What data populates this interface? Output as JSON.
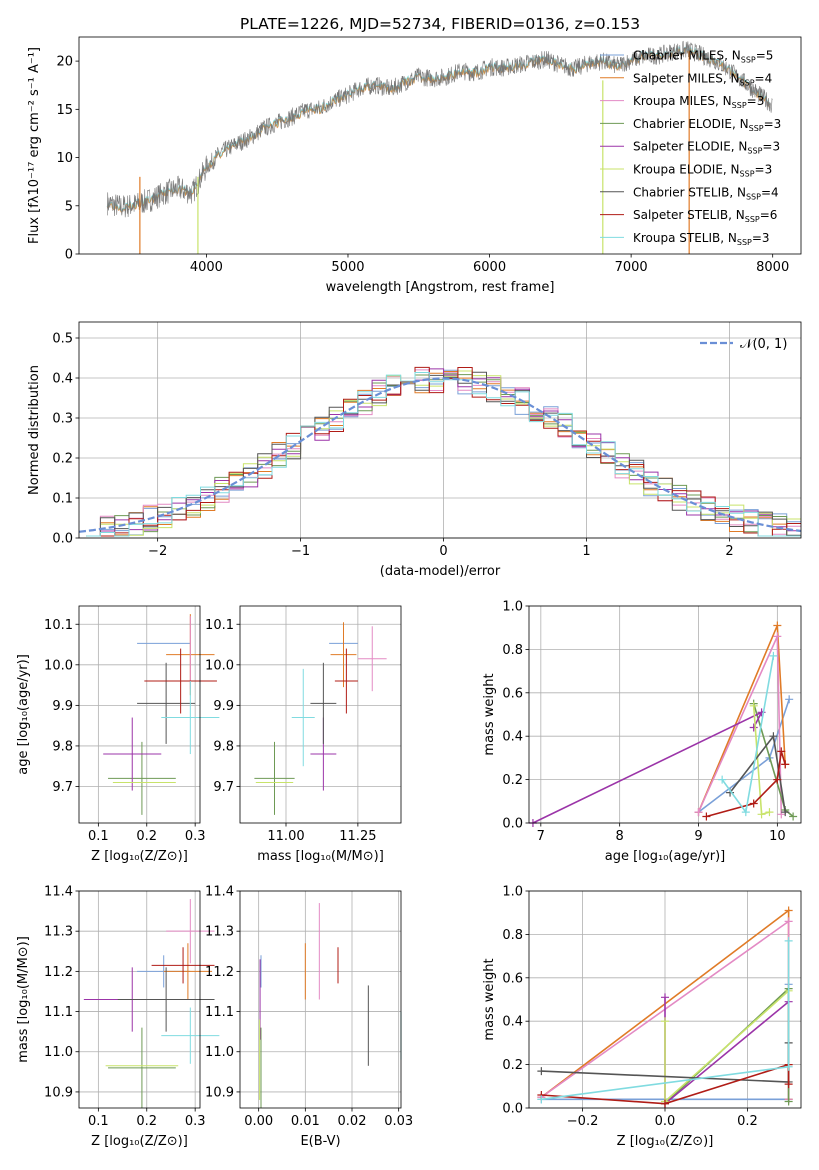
{
  "title": "PLATE=1226, MJD=52734, FIBERID=0136, z=0.153",
  "colors": [
    "#7aa0d8",
    "#e07b27",
    "#e38ac4",
    "#6e9a55",
    "#9b34a8",
    "#c8e36a",
    "#555555",
    "#b01c16",
    "#80dbe0"
  ],
  "chart_data": [
    {
      "type": "line",
      "id": "spectrum",
      "xlabel": "wavelength [Angstrom, rest frame]",
      "ylabel": "Flux [fλ10⁻¹⁷ erg cm⁻² s⁻¹ A⁻¹]",
      "xlim": [
        3100,
        8200
      ],
      "ylim": [
        0,
        22.5
      ],
      "xticks": [
        {
          "v": 4000,
          "t": "4000"
        },
        {
          "v": 5000,
          "t": "5000"
        },
        {
          "v": 6000,
          "t": "6000"
        },
        {
          "v": 7000,
          "t": "7000"
        },
        {
          "v": 8000,
          "t": "8000"
        }
      ],
      "yticks": [
        {
          "v": 0,
          "t": "0"
        },
        {
          "v": 5,
          "t": "5"
        },
        {
          "v": 10,
          "t": "10"
        },
        {
          "v": 15,
          "t": "15"
        },
        {
          "v": 20,
          "t": "20"
        }
      ],
      "legend": [
        "Chabrier MILES, N_SSP=5",
        "Salpeter MILES, N_SSP=4",
        "Kroupa MILES, N_SSP=3",
        "Chabrier ELODIE, N_SSP=3",
        "Salpeter ELODIE, N_SSP=3",
        "Kroupa ELODIE, N_SSP=3",
        "Chabrier STELIB, N_SSP=4",
        "Salpeter STELIB, N_SSP=6",
        "Kroupa STELIB, N_SSP=3"
      ],
      "series": [
        {
          "wavelength": [
            3300,
            3400,
            3500,
            3600,
            3700,
            3800,
            3900,
            4000,
            4100,
            4200,
            4300,
            4400,
            4500,
            4600,
            4700,
            4800,
            4900,
            5000,
            5100,
            5200,
            5300,
            5400,
            5500,
            5600,
            5700,
            5800,
            5900,
            6000,
            6100,
            6200,
            6300,
            6400,
            6500,
            6600,
            6700,
            6800,
            6900,
            7000,
            7100,
            7200,
            7300,
            7400,
            7500,
            7600,
            7700,
            7800,
            7900,
            8000
          ],
          "flux": [
            5.3,
            4.9,
            5.1,
            5.6,
            6.3,
            6.8,
            6.3,
            9.0,
            10.5,
            11.3,
            12.0,
            13.0,
            13.6,
            14.2,
            14.9,
            15.1,
            15.9,
            16.5,
            17.3,
            17.5,
            17.1,
            17.8,
            18.4,
            18.2,
            18.4,
            19.0,
            18.8,
            19.4,
            19.3,
            19.6,
            19.9,
            20.2,
            19.6,
            19.2,
            19.8,
            20.0,
            19.5,
            20.1,
            20.5,
            20.6,
            21.0,
            21.2,
            20.6,
            20.0,
            19.0,
            17.8,
            16.6,
            15.4
          ]
        }
      ]
    },
    {
      "type": "histogram",
      "id": "residuals",
      "xlabel": "(data-model)/error",
      "ylabel": "Normed distribution",
      "xlim": [
        -2.55,
        2.5
      ],
      "ylim": [
        0,
        0.54
      ],
      "xticks": [
        {
          "v": -2,
          "t": "−2"
        },
        {
          "v": -1,
          "t": "−1"
        },
        {
          "v": 0,
          "t": "0"
        },
        {
          "v": 1,
          "t": "1"
        },
        {
          "v": 2,
          "t": "2"
        }
      ],
      "yticks": [
        {
          "v": 0,
          "t": "0.0"
        },
        {
          "v": 0.1,
          "t": "0.1"
        },
        {
          "v": 0.2,
          "t": "0.2"
        },
        {
          "v": 0.3,
          "t": "0.3"
        },
        {
          "v": 0.4,
          "t": "0.4"
        },
        {
          "v": 0.5,
          "t": "0.5"
        }
      ],
      "legend": "𝒩(0, 1)",
      "bin_start": -2.5,
      "bin_width": 0.1
    },
    {
      "type": "scatter",
      "id": "age-Z",
      "xlabel": "Z [log₁₀(Z/Z⊙)]",
      "ylabel": "age  [log₁₀(age/yr)]",
      "xlim": [
        0.06,
        0.31
      ],
      "ylim": [
        9.61,
        10.145
      ],
      "xticks": [
        {
          "v": 0.1,
          "t": "0.1"
        },
        {
          "v": 0.2,
          "t": "0.2"
        },
        {
          "v": 0.3,
          "t": "0.3"
        }
      ],
      "yticks": [
        {
          "v": 9.7,
          "t": "9.7"
        },
        {
          "v": 9.8,
          "t": "9.8"
        },
        {
          "v": 9.9,
          "t": "9.9"
        },
        {
          "v": 10.0,
          "t": "10.0"
        },
        {
          "v": 10.1,
          "t": "10.1"
        }
      ],
      "points": [
        {
          "x": 0.235,
          "y": 10.053,
          "ex": 0.055,
          "ey": 0.0
        },
        {
          "x": 0.29,
          "y": 10.025,
          "ex": 0.05,
          "ey": 0.1
        },
        {
          "x": 0.29,
          "y": 10.03,
          "ex": 0.0,
          "ey": 0.09
        },
        {
          "x": 0.19,
          "y": 9.72,
          "ex": 0.07,
          "ey": 0.09
        },
        {
          "x": 0.17,
          "y": 9.78,
          "ex": 0.06,
          "ey": 0.09
        },
        {
          "x": 0.195,
          "y": 9.71,
          "ex": 0.065,
          "ey": 0.0
        },
        {
          "x": 0.24,
          "y": 9.905,
          "ex": 0.06,
          "ey": 0.1
        },
        {
          "x": 0.27,
          "y": 9.96,
          "ex": 0.075,
          "ey": 0.08
        },
        {
          "x": 0.29,
          "y": 9.87,
          "ex": 0.06,
          "ey": 0.09
        }
      ]
    },
    {
      "type": "scatter",
      "id": "age-mass",
      "xlabel": "mass [log₁₀(M/M⊙)]",
      "ylabel": "",
      "xlim": [
        10.84,
        11.4
      ],
      "ylim": [
        9.61,
        10.145
      ],
      "xticks": [
        {
          "v": 11.0,
          "t": "11.00"
        },
        {
          "v": 11.25,
          "t": "11.25"
        }
      ],
      "yticks": [
        {
          "v": 9.7,
          "t": "9.7"
        },
        {
          "v": 9.8,
          "t": "9.8"
        },
        {
          "v": 9.9,
          "t": "9.9"
        },
        {
          "v": 10.0,
          "t": "10.0"
        },
        {
          "v": 10.1,
          "t": "10.1"
        }
      ],
      "points": [
        {
          "x": 11.2,
          "y": 10.053,
          "ex": 0.05,
          "ey": 0.05
        },
        {
          "x": 11.2,
          "y": 10.025,
          "ex": 0.045,
          "ey": 0.08
        },
        {
          "x": 11.3,
          "y": 10.015,
          "ex": 0.05,
          "ey": 0.08
        },
        {
          "x": 10.96,
          "y": 9.72,
          "ex": 0.07,
          "ey": 0.09
        },
        {
          "x": 11.13,
          "y": 9.78,
          "ex": 0.045,
          "ey": 0.09
        },
        {
          "x": 10.96,
          "y": 9.71,
          "ex": 0.065,
          "ey": 0.0
        },
        {
          "x": 11.13,
          "y": 9.905,
          "ex": 0.045,
          "ey": 0.1
        },
        {
          "x": 11.21,
          "y": 9.96,
          "ex": 0.04,
          "ey": 0.08
        },
        {
          "x": 11.06,
          "y": 9.87,
          "ex": 0.04,
          "ey": 0.12
        }
      ]
    },
    {
      "type": "line",
      "id": "weight-age",
      "xlabel": "age  [log₁₀(age/yr)]",
      "ylabel": "mass weight",
      "xlim": [
        6.85,
        10.3
      ],
      "ylim": [
        0,
        1.0
      ],
      "xticks": [
        {
          "v": 7,
          "t": "7"
        },
        {
          "v": 8,
          "t": "8"
        },
        {
          "v": 9,
          "t": "9"
        },
        {
          "v": 10,
          "t": "10"
        }
      ],
      "yticks": [
        {
          "v": 0,
          "t": "0.0"
        },
        {
          "v": 0.2,
          "t": "0.2"
        },
        {
          "v": 0.4,
          "t": "0.4"
        },
        {
          "v": 0.6,
          "t": "0.6"
        },
        {
          "v": 0.8,
          "t": "0.8"
        },
        {
          "v": 1.0,
          "t": "1.0"
        }
      ],
      "series": [
        {
          "x": [
            9.0,
            9.9,
            10.15
          ],
          "y": [
            0.05,
            0.3,
            0.57
          ]
        },
        {
          "x": [
            9.0,
            10.0,
            10.1
          ],
          "y": [
            0.05,
            0.91,
            0.27
          ]
        },
        {
          "x": [
            9.0,
            10.0,
            10.05
          ],
          "y": [
            0.05,
            0.86,
            0.04
          ]
        },
        {
          "x": [
            9.7,
            10.1,
            10.2
          ],
          "y": [
            0.55,
            0.06,
            0.03
          ]
        },
        {
          "x": [
            6.9,
            9.8,
            9.7
          ],
          "y": [
            0.0,
            0.51,
            0.44
          ]
        },
        {
          "x": [
            9.7,
            9.8,
            9.9
          ],
          "y": [
            0.54,
            0.04,
            0.05
          ]
        },
        {
          "x": [
            9.4,
            9.95,
            10.1
          ],
          "y": [
            0.14,
            0.4,
            0.05
          ]
        },
        {
          "x": [
            9.1,
            9.7,
            10.0,
            10.05,
            10.1
          ],
          "y": [
            0.03,
            0.09,
            0.2,
            0.33,
            0.27
          ]
        },
        {
          "x": [
            9.3,
            9.6,
            9.95
          ],
          "y": [
            0.2,
            0.05,
            0.77
          ]
        }
      ]
    },
    {
      "type": "scatter",
      "id": "mass-Z",
      "xlabel": "Z [log₁₀(Z/Z⊙)]",
      "ylabel": "mass [log₁₀(M/M⊙)]",
      "xlim": [
        0.06,
        0.31
      ],
      "ylim": [
        10.86,
        11.4
      ],
      "xticks": [
        {
          "v": 0.1,
          "t": "0.1"
        },
        {
          "v": 0.2,
          "t": "0.2"
        },
        {
          "v": 0.3,
          "t": "0.3"
        }
      ],
      "yticks": [
        {
          "v": 10.9,
          "t": "10.9"
        },
        {
          "v": 11.0,
          "t": "11.0"
        },
        {
          "v": 11.1,
          "t": "11.1"
        },
        {
          "v": 11.2,
          "t": "11.2"
        },
        {
          "v": 11.3,
          "t": "11.3"
        },
        {
          "v": 11.4,
          "t": "11.4"
        }
      ],
      "points": [
        {
          "x": 0.235,
          "y": 11.2,
          "ex": 0.055,
          "ey": 0.04
        },
        {
          "x": 0.285,
          "y": 11.2,
          "ex": 0.05,
          "ey": 0.07
        },
        {
          "x": 0.29,
          "y": 11.3,
          "ex": 0.05,
          "ey": 0.08
        },
        {
          "x": 0.19,
          "y": 10.96,
          "ex": 0.07,
          "ey": 0.1
        },
        {
          "x": 0.17,
          "y": 11.13,
          "ex": 0.1,
          "ey": 0.08
        },
        {
          "x": 0.19,
          "y": 10.965,
          "ex": 0.075,
          "ey": 0.0
        },
        {
          "x": 0.24,
          "y": 11.13,
          "ex": 0.1,
          "ey": 0.08
        },
        {
          "x": 0.275,
          "y": 11.215,
          "ex": 0.065,
          "ey": 0.045
        },
        {
          "x": 0.29,
          "y": 11.04,
          "ex": 0.06,
          "ey": 0.07
        }
      ]
    },
    {
      "type": "scatter",
      "id": "mass-EBV",
      "xlabel": "E(B-V)",
      "ylabel": "",
      "xlim": [
        -0.004,
        0.0305
      ],
      "ylim": [
        10.86,
        11.4
      ],
      "xticks": [
        {
          "v": 0.0,
          "t": "0.00"
        },
        {
          "v": 0.01,
          "t": "0.01"
        },
        {
          "v": 0.02,
          "t": "0.02"
        },
        {
          "v": 0.03,
          "t": "0.03"
        }
      ],
      "yticks": [
        {
          "v": 10.9,
          "t": "10.9"
        },
        {
          "v": 11.0,
          "t": "11.0"
        },
        {
          "v": 11.1,
          "t": "11.1"
        },
        {
          "v": 11.2,
          "t": "11.2"
        },
        {
          "v": 11.3,
          "t": "11.3"
        },
        {
          "v": 11.4,
          "t": "11.4"
        }
      ],
      "points": [
        {
          "x": 0.0005,
          "y": 11.2,
          "ex": 0.0,
          "ey": 0.04
        },
        {
          "x": 0.01,
          "y": 11.2,
          "ex": 0.0,
          "ey": 0.07
        },
        {
          "x": 0.013,
          "y": 11.25,
          "ex": 0.0,
          "ey": 0.12
        },
        {
          "x": 0.0005,
          "y": 10.96,
          "ex": 0.0,
          "ey": 0.1
        },
        {
          "x": 0.0003,
          "y": 11.13,
          "ex": 0.0,
          "ey": 0.1
        },
        {
          "x": 0.0002,
          "y": 10.98,
          "ex": 0.0,
          "ey": 0.1
        },
        {
          "x": 0.0235,
          "y": 11.065,
          "ex": 0.0,
          "ey": 0.1
        },
        {
          "x": 0.017,
          "y": 11.215,
          "ex": 0.0,
          "ey": 0.045
        },
        {
          "x": 0.0305,
          "y": 11.04,
          "ex": 0.0,
          "ey": 0.06
        }
      ]
    },
    {
      "type": "line",
      "id": "weight-Z",
      "xlabel": "Z [log₁₀(Z/Z⊙)]",
      "ylabel": "mass weight",
      "xlim": [
        -0.33,
        0.33
      ],
      "ylim": [
        0,
        1.0
      ],
      "xticks": [
        {
          "v": -0.2,
          "t": "−0.2"
        },
        {
          "v": 0.0,
          "t": "0.0"
        },
        {
          "v": 0.2,
          "t": "0.2"
        }
      ],
      "yticks": [
        {
          "v": 0,
          "t": "0.0"
        },
        {
          "v": 0.2,
          "t": "0.2"
        },
        {
          "v": 0.4,
          "t": "0.4"
        },
        {
          "v": 0.6,
          "t": "0.6"
        },
        {
          "v": 0.8,
          "t": "0.8"
        },
        {
          "v": 1.0,
          "t": "1.0"
        }
      ],
      "series": [
        {
          "x": [
            -0.3,
            0.3,
            0.3
          ],
          "y": [
            0.04,
            0.04,
            0.57
          ]
        },
        {
          "x": [
            -0.3,
            0.3,
            0.3
          ],
          "y": [
            0.05,
            0.91,
            0.04
          ]
        },
        {
          "x": [
            -0.3,
            0.3,
            0.3
          ],
          "y": [
            0.05,
            0.86,
            0.04
          ]
        },
        {
          "x": [
            0.0,
            0.3,
            0.3
          ],
          "y": [
            0.02,
            0.55,
            0.03
          ]
        },
        {
          "x": [
            0.0,
            0.0,
            0.3
          ],
          "y": [
            0.51,
            0.02,
            0.49
          ]
        },
        {
          "x": [
            0.0,
            0.0,
            0.3
          ],
          "y": [
            0.4,
            0.03,
            0.54
          ]
        },
        {
          "x": [
            -0.3,
            0.3,
            0.3
          ],
          "y": [
            0.17,
            0.12,
            0.3
          ]
        },
        {
          "x": [
            -0.3,
            0.0,
            0.3,
            0.3
          ],
          "y": [
            0.06,
            0.02,
            0.2,
            0.11
          ]
        },
        {
          "x": [
            -0.3,
            0.3,
            0.3
          ],
          "y": [
            0.04,
            0.19,
            0.77
          ]
        }
      ]
    }
  ]
}
